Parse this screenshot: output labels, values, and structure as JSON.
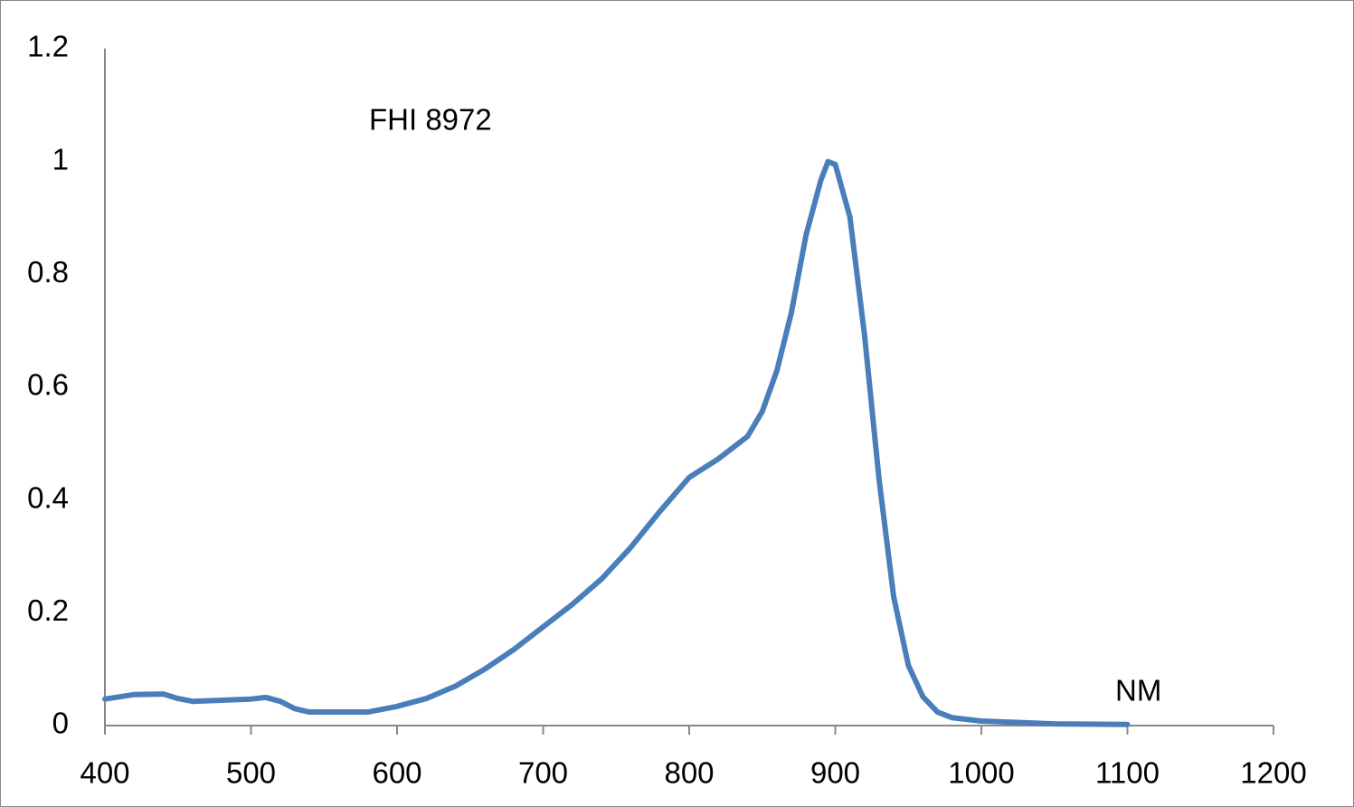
{
  "chart_data": {
    "type": "line",
    "annotations": [
      "FHI 8972"
    ],
    "x_label": "NM",
    "series": [
      {
        "color": "#4a7ebb",
        "x": [
          400,
          420,
          440,
          450,
          460,
          480,
          500,
          510,
          520,
          530,
          540,
          560,
          580,
          600,
          620,
          640,
          660,
          680,
          700,
          720,
          740,
          760,
          780,
          800,
          820,
          840,
          850,
          860,
          870,
          880,
          890,
          895,
          900,
          910,
          920,
          930,
          940,
          950,
          960,
          970,
          980,
          1000,
          1050,
          1100
        ],
        "values": [
          0.047,
          0.055,
          0.056,
          0.048,
          0.043,
          0.045,
          0.047,
          0.05,
          0.043,
          0.03,
          0.024,
          0.024,
          0.024,
          0.034,
          0.048,
          0.07,
          0.1,
          0.135,
          0.175,
          0.215,
          0.26,
          0.316,
          0.38,
          0.44,
          0.473,
          0.513,
          0.557,
          0.629,
          0.733,
          0.87,
          0.966,
          1.0,
          0.995,
          0.902,
          0.693,
          0.436,
          0.228,
          0.107,
          0.051,
          0.024,
          0.014,
          0.008,
          0.003,
          0.002
        ]
      }
    ],
    "xlim": [
      400,
      1200
    ],
    "xticks": [
      400,
      500,
      600,
      700,
      800,
      900,
      1000,
      1100,
      1200
    ],
    "ylim": [
      0,
      1.2
    ],
    "yticks": [
      0,
      0.2,
      0.4,
      0.6,
      0.8,
      1,
      1.2
    ]
  }
}
